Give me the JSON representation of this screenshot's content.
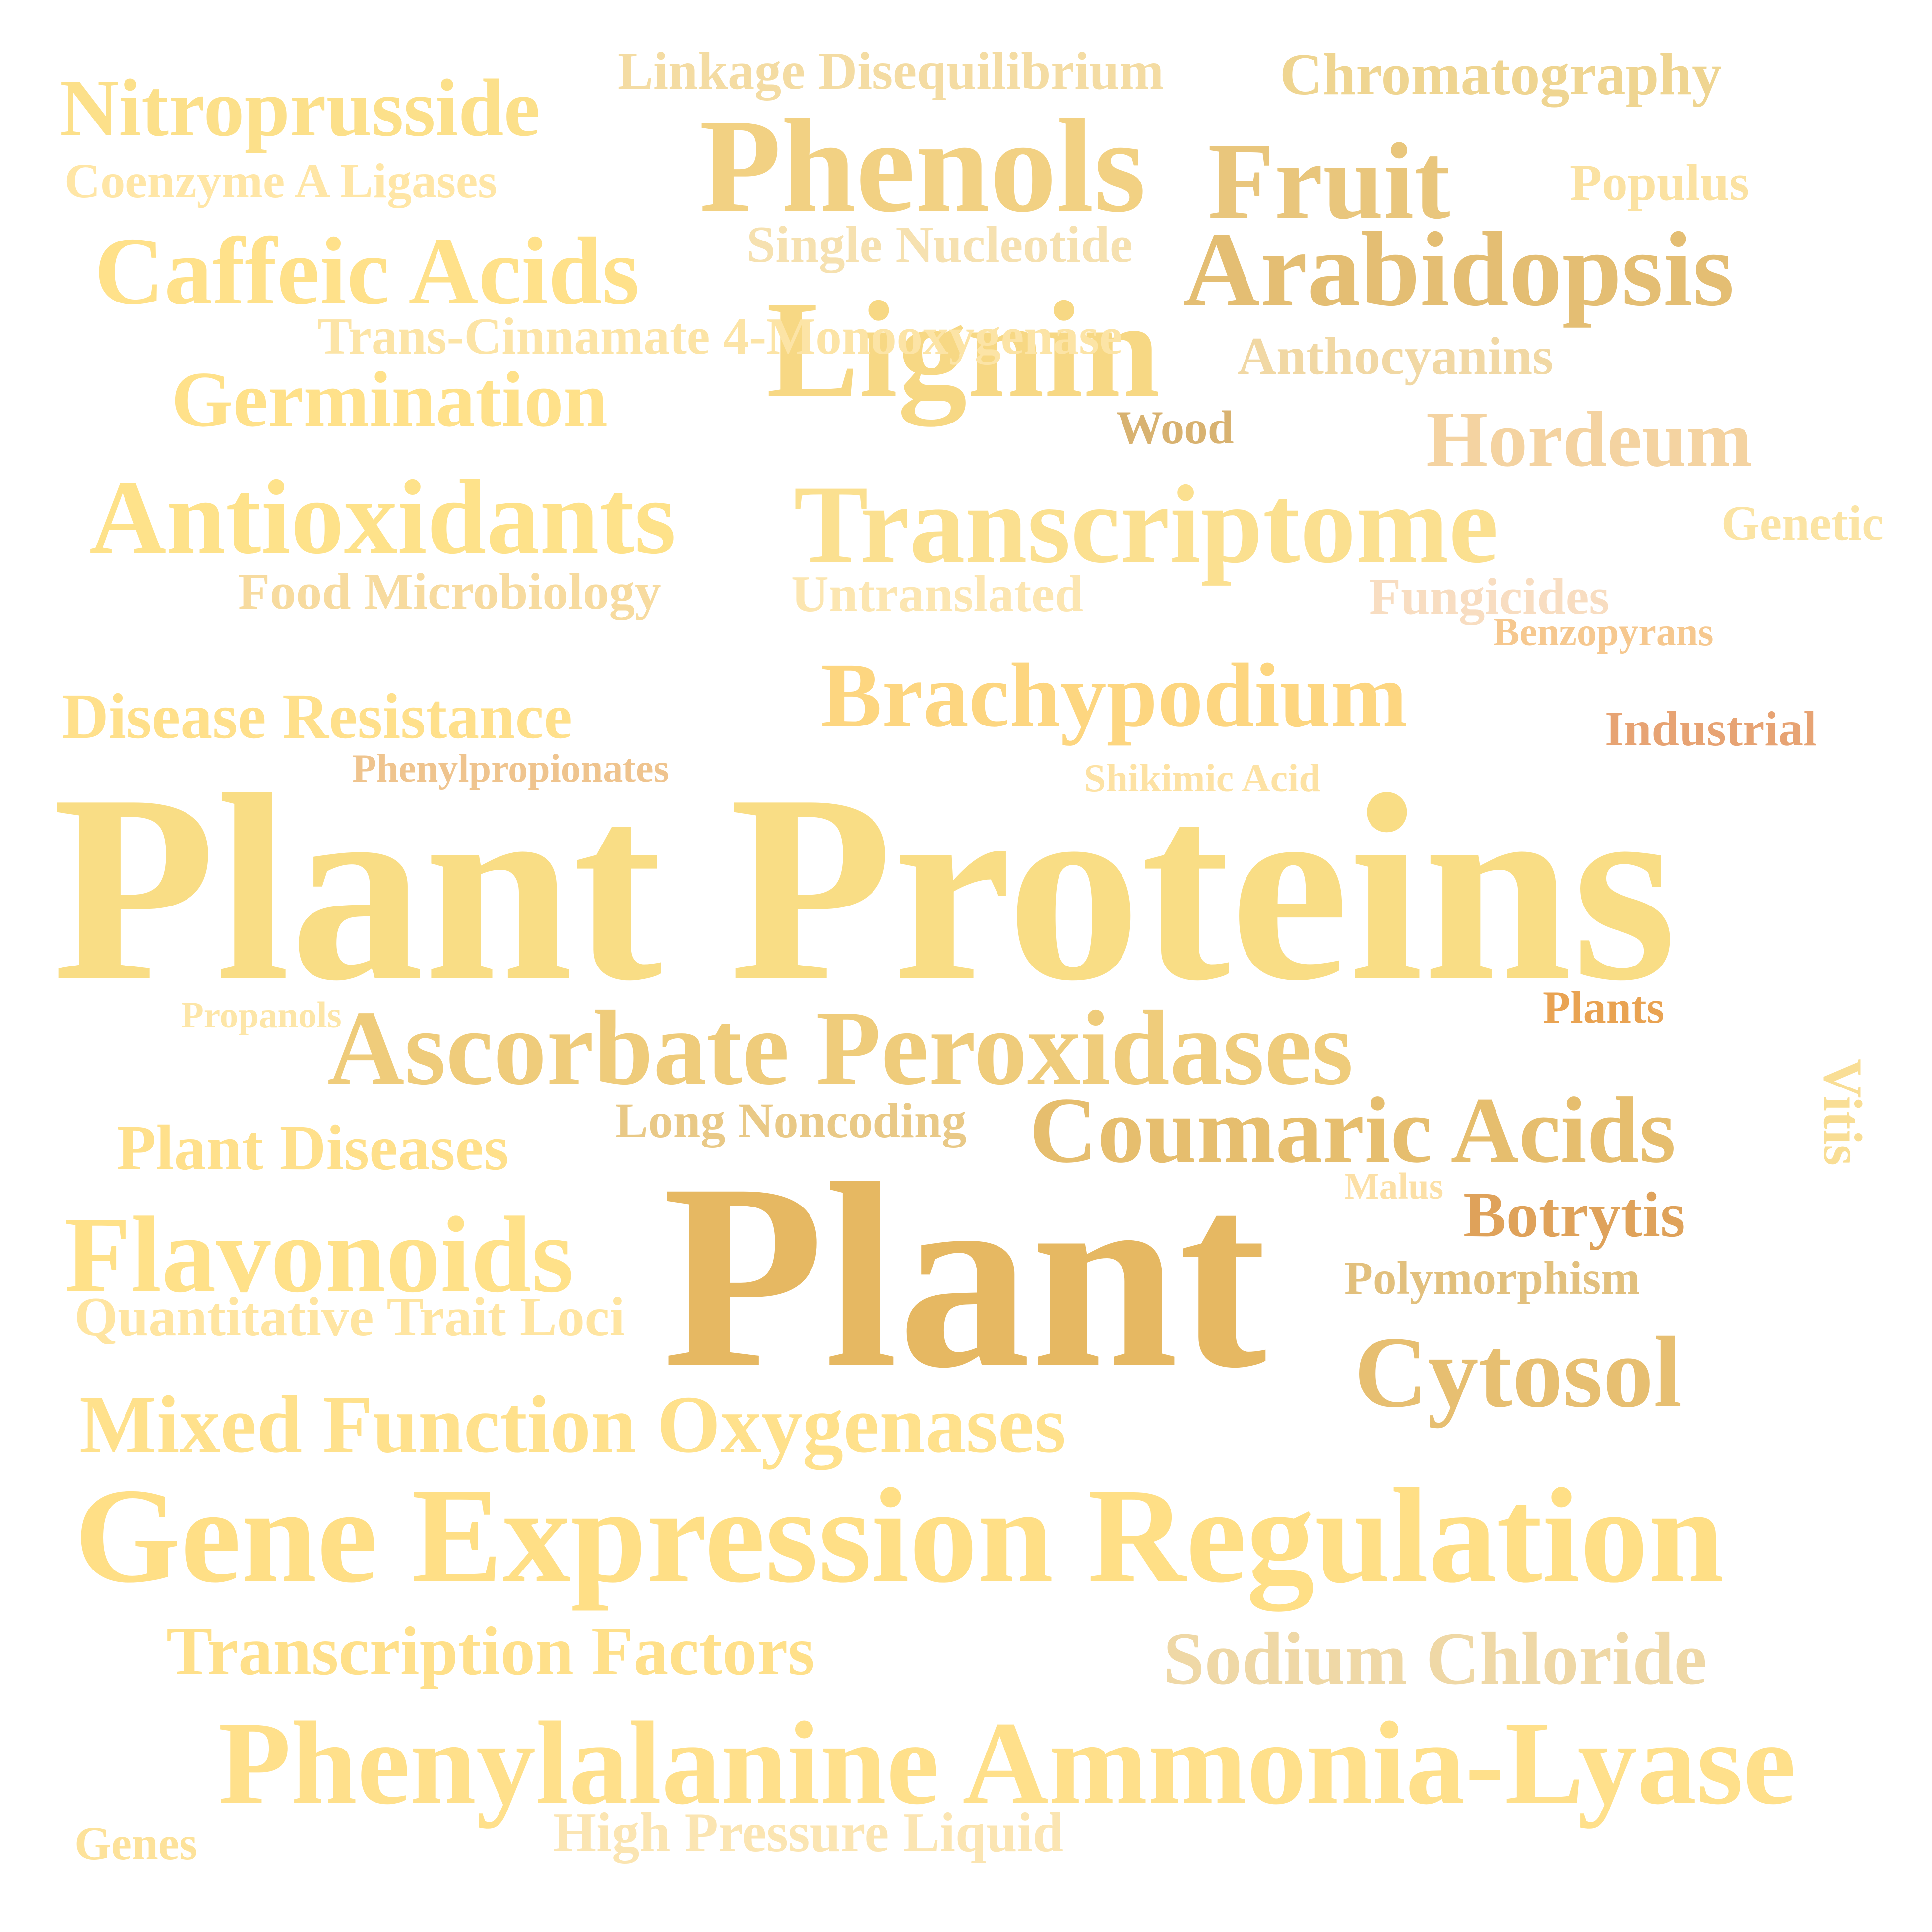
{
  "words": [
    {
      "id": "plant-proteins",
      "text": "Plant Proteins",
      "color": "#F9DD85"
    },
    {
      "id": "plant",
      "text": "Plant",
      "color": "#E6B862"
    },
    {
      "id": "gene-expression-regulation",
      "text": "Gene Expression Regulation",
      "color": "#FFDF86"
    },
    {
      "id": "phenylalanine-ammonia-lyase",
      "text": "Phenylalanine Ammonia-Lyase",
      "color": "#FFE08B"
    },
    {
      "id": "phenols",
      "text": "Phenols",
      "color": "#F2D183"
    },
    {
      "id": "fruit",
      "text": "Fruit",
      "color": "#E9C67C"
    },
    {
      "id": "lignin",
      "text": "Lignin",
      "color": "#F7D884"
    },
    {
      "id": "transcriptome",
      "text": "Transcriptome",
      "color": "#FBE090"
    },
    {
      "id": "antioxidants",
      "text": "Antioxidants",
      "color": "#FEE28A"
    },
    {
      "id": "arabidopsis",
      "text": "Arabidopsis",
      "color": "#E4BE73"
    },
    {
      "id": "caffeic-acids",
      "text": "Caffeic Acids",
      "color": "#FFE18A"
    },
    {
      "id": "ascorbate-peroxidases",
      "text": "Ascorbate Peroxidases",
      "color": "#EFCC7B"
    },
    {
      "id": "coumaric-acids",
      "text": "Coumaric Acids",
      "color": "#E6BE6E"
    },
    {
      "id": "flavonoids",
      "text": "Flavonoids",
      "color": "#FFE189"
    },
    {
      "id": "cytosol",
      "text": "Cytosol",
      "color": "#E7BF71"
    },
    {
      "id": "brachypodium",
      "text": "Brachypodium",
      "color": "#FDD680"
    },
    {
      "id": "mixed-function-oxygenases",
      "text": "Mixed Function Oxygenases",
      "color": "#FFE18C"
    },
    {
      "id": "nitroprusside",
      "text": "Nitroprusside",
      "color": "#FCE08A"
    },
    {
      "id": "germination",
      "text": "Germination",
      "color": "#FFE18A"
    },
    {
      "id": "disease-resistance",
      "text": "Disease Resistance",
      "color": "#FFE08B"
    },
    {
      "id": "hordeum",
      "text": "Hordeum",
      "color": "#F4D3A1"
    },
    {
      "id": "transcription-factors",
      "text": "Transcription Factors",
      "color": "#FFE08A"
    },
    {
      "id": "sodium-chloride",
      "text": "Sodium Chloride",
      "color": "#EFD8A6"
    },
    {
      "id": "plant-diseases",
      "text": "Plant Diseases",
      "color": "#FFE08B"
    },
    {
      "id": "botrytis",
      "text": "Botrytis",
      "color": "#DFA25A"
    },
    {
      "id": "chromatography",
      "text": "Chromatography",
      "color": "#EFD591"
    },
    {
      "id": "anthocyanins",
      "text": "Anthocyanins",
      "color": "#F9DE95"
    },
    {
      "id": "coenzyme-a-ligases",
      "text": "Coenzyme A Ligases",
      "color": "#F1D8A4"
    },
    {
      "id": "linkage-disequilibrium",
      "text": "Linkage Disequilibrium",
      "color": "#FFE6A6"
    },
    {
      "id": "quantitative-trait-loci",
      "text": "Quantitative Trait Loci",
      "color": "#F4DCA3"
    },
    {
      "id": "high-pressure-liquid",
      "text": "High Pressure Liquid",
      "color": "#FFE5A1"
    },
    {
      "id": "trans-cinnamate-4-monooxygenase",
      "text": "Trans-Cinnamate 4-Monooxygenase",
      "color": "#FBE5B2"
    },
    {
      "id": "untranslated",
      "text": "Untranslated",
      "color": "#FCE4A6"
    },
    {
      "id": "single-nucleotide",
      "text": "Single Nucleotide",
      "color": "#FCE6B1"
    },
    {
      "id": "long-noncoding",
      "text": "Long Noncoding",
      "color": "#F6E1B0"
    },
    {
      "id": "polymorphism",
      "text": "Polymorphism",
      "color": "#E9C986"
    },
    {
      "id": "food-microbiology",
      "text": "Food Microbiology",
      "color": "#E2C07D"
    },
    {
      "id": "populus",
      "text": "Populus",
      "color": "#F7DB9F"
    },
    {
      "id": "wood",
      "text": "Wood",
      "color": "#FBE2A2"
    },
    {
      "id": "fungicides",
      "text": "Fungicides",
      "color": "#D8B270"
    },
    {
      "id": "genetic",
      "text": "Genetic",
      "color": "#F8DDC1"
    },
    {
      "id": "genes",
      "text": "Genes",
      "color": "#FBE4A4"
    },
    {
      "id": "industrial",
      "text": "Industrial",
      "color": "#FDE29A"
    },
    {
      "id": "plants",
      "text": "Plants",
      "color": "#E7A373"
    },
    {
      "id": "benzopyrans",
      "text": "Benzopyrans",
      "color": "#E9A352"
    },
    {
      "id": "phenylpropionates",
      "text": "Phenylpropionates",
      "color": "#F6C88F"
    },
    {
      "id": "shikimic-acid",
      "text": "Shikimic Acid",
      "color": "#EFC48E"
    },
    {
      "id": "propanols",
      "text": "Propanols",
      "color": "#FDE2A4"
    },
    {
      "id": "malus",
      "text": "Malus",
      "color": "#FDE6A8"
    },
    {
      "id": "vitis",
      "text": "Vitis",
      "color": "#FCE0A7"
    }
  ]
}
